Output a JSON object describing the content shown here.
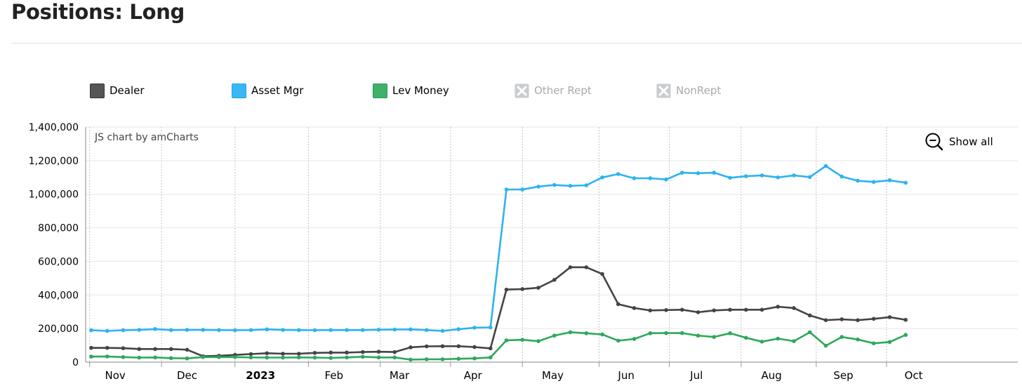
{
  "page": {
    "title": "Positions: Long"
  },
  "watermark": "JS chart by amCharts",
  "zoom": {
    "show_all_label": "Show all"
  },
  "legend": [
    {
      "label": "Dealer",
      "color": "#555555",
      "enabled": true
    },
    {
      "label": "Asset Mgr",
      "color": "#3ab8f5",
      "enabled": true
    },
    {
      "label": "Lev Money",
      "color": "#40b06a",
      "enabled": true
    },
    {
      "label": "Other Rept",
      "color": "#aaaaaa",
      "enabled": false
    },
    {
      "label": "NonRept",
      "color": "#aaaaaa",
      "enabled": false
    }
  ],
  "chart_data": {
    "type": "line",
    "title": "",
    "xlabel": "",
    "ylabel": "",
    "ylim": [
      0,
      1400000
    ],
    "yticks": [
      0,
      200000,
      400000,
      600000,
      800000,
      1000000,
      1200000,
      1400000
    ],
    "ytick_labels": [
      "0",
      "200,000",
      "400,000",
      "600,000",
      "800,000",
      "1,000,000",
      "1,200,000",
      "1,400,000"
    ],
    "x_tick_labels": [
      {
        "label": "Nov",
        "at": 1.5,
        "bold": false
      },
      {
        "label": "Dec",
        "at": 6.0,
        "bold": false
      },
      {
        "label": "2023",
        "at": 10.6,
        "bold": true
      },
      {
        "label": "Feb",
        "at": 15.2,
        "bold": false
      },
      {
        "label": "Mar",
        "at": 19.3,
        "bold": false
      },
      {
        "label": "Apr",
        "at": 23.9,
        "bold": false
      },
      {
        "label": "May",
        "at": 28.9,
        "bold": false
      },
      {
        "label": "Jun",
        "at": 33.5,
        "bold": false
      },
      {
        "label": "Jul",
        "at": 37.9,
        "bold": false
      },
      {
        "label": "Aug",
        "at": 42.6,
        "bold": false
      },
      {
        "label": "Sep",
        "at": 47.1,
        "bold": false
      },
      {
        "label": "Oct",
        "at": 51.5,
        "bold": false
      }
    ],
    "vertical_grid_at": [
      -0.1,
      4.4,
      9.0,
      13.6,
      18.1,
      22.5,
      27.0,
      31.8,
      36.2,
      40.7,
      45.4,
      49.8
    ],
    "grid": true,
    "legend_position": "top",
    "series": [
      {
        "name": "Dealer",
        "color": "#444444",
        "values": [
          85000,
          85000,
          83000,
          78000,
          78000,
          78000,
          74000,
          35000,
          38000,
          43000,
          48000,
          53000,
          50000,
          50000,
          55000,
          57000,
          57000,
          60000,
          62000,
          60000,
          88000,
          94000,
          95000,
          95000,
          90000,
          82000,
          432000,
          435000,
          443000,
          490000,
          565000,
          565000,
          525000,
          345000,
          322000,
          308000,
          310000,
          312000,
          297000,
          308000,
          312000,
          312000,
          312000,
          330000,
          322000,
          278000,
          250000,
          255000,
          250000,
          258000,
          268000,
          252000
        ]
      },
      {
        "name": "Asset Mgr",
        "color": "#2eb2ef",
        "values": [
          190000,
          186000,
          190000,
          192000,
          197000,
          191000,
          192000,
          192000,
          191000,
          190000,
          191000,
          195000,
          192000,
          191000,
          190000,
          191000,
          191000,
          191000,
          193000,
          194000,
          195000,
          191000,
          186000,
          196000,
          205000,
          207000,
          1028000,
          1028000,
          1045000,
          1055000,
          1050000,
          1053000,
          1100000,
          1120000,
          1095000,
          1095000,
          1088000,
          1128000,
          1125000,
          1128000,
          1098000,
          1107000,
          1112000,
          1100000,
          1112000,
          1102000,
          1168000,
          1105000,
          1080000,
          1073000,
          1083000,
          1068000
        ]
      },
      {
        "name": "Lev Money",
        "color": "#2ea85a",
        "values": [
          33000,
          34000,
          30000,
          27000,
          28000,
          24000,
          22000,
          30000,
          30000,
          30000,
          28000,
          27000,
          27000,
          28000,
          27000,
          25000,
          28000,
          32000,
          28000,
          28000,
          15000,
          17000,
          17000,
          20000,
          22000,
          28000,
          130000,
          133000,
          125000,
          158000,
          178000,
          172000,
          165000,
          128000,
          138000,
          172000,
          173000,
          173000,
          158000,
          150000,
          172000,
          145000,
          122000,
          140000,
          125000,
          178000,
          98000,
          150000,
          135000,
          112000,
          120000,
          162000
        ]
      }
    ]
  }
}
